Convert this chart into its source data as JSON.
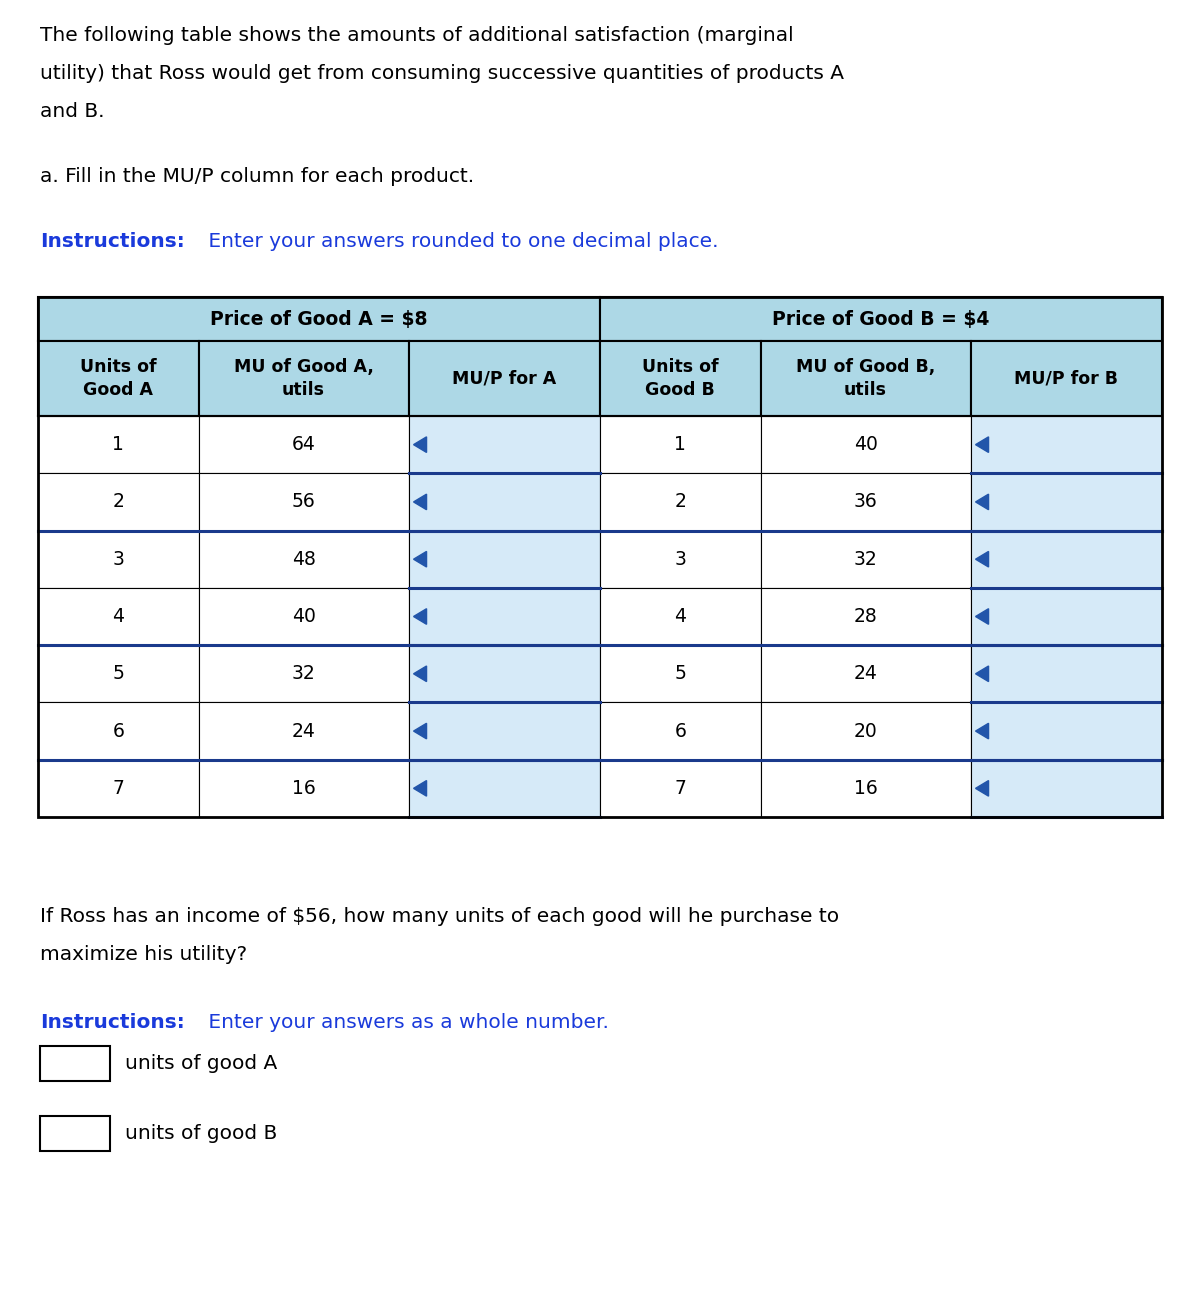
{
  "intro_text_line1": "The following table shows the amounts of additional satisfaction (marginal",
  "intro_text_line2": "utility) that Ross would get from consuming successive quantities of products A",
  "intro_text_line3": "and B.",
  "part_a_text": "a. Fill in the MU/P column for each product.",
  "instructions_bold": "Instructions:",
  "instructions_text": " Enter your answers rounded to one decimal place.",
  "price_a_header": "Price of Good A = $8",
  "price_b_header": "Price of Good B = $4",
  "col_headers": [
    "Units of\nGood A",
    "MU of Good A,\nutils",
    "MU/P for A",
    "Units of\nGood B",
    "MU of Good B,\nutils",
    "MU/P for B"
  ],
  "units_a": [
    1,
    2,
    3,
    4,
    5,
    6,
    7
  ],
  "mu_a": [
    64,
    56,
    48,
    40,
    32,
    24,
    16
  ],
  "units_b": [
    1,
    2,
    3,
    4,
    5,
    6,
    7
  ],
  "mu_b": [
    40,
    36,
    32,
    28,
    24,
    20,
    16
  ],
  "question_text_line1": "If Ross has an income of $56, how many units of each good will he purchase to",
  "question_text_line2": "maximize his utility?",
  "instructions2_bold": "Instructions:",
  "instructions2_text": " Enter your answers as a whole number.",
  "answer_label_a": "units of good A",
  "answer_label_b": "units of good B",
  "header_bg_color": "#add8e6",
  "data_bg_color": "#ffffff",
  "mup_col_bg_color": "#d6eaf8",
  "thick_border_color": "#1a3a8c",
  "blue_text_color": "#1a3adb",
  "black_text_color": "#000000",
  "arrow_color": "#2255aa",
  "fig_width": 12.0,
  "fig_height": 13.11,
  "dpi": 100
}
